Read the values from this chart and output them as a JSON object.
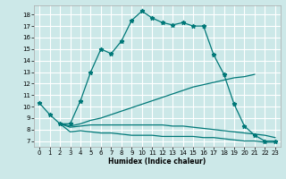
{
  "xlabel": "Humidex (Indice chaleur)",
  "bg_color": "#cce8e8",
  "grid_color": "#ffffff",
  "line_color": "#007878",
  "xlim": [
    -0.5,
    23.5
  ],
  "ylim": [
    6.5,
    18.8
  ],
  "xticks": [
    0,
    1,
    2,
    3,
    4,
    5,
    6,
    7,
    8,
    9,
    10,
    11,
    12,
    13,
    14,
    15,
    16,
    17,
    18,
    19,
    20,
    21,
    22,
    23
  ],
  "yticks": [
    7,
    8,
    9,
    10,
    11,
    12,
    13,
    14,
    15,
    16,
    17,
    18
  ],
  "curve1_x": [
    0,
    1,
    2,
    3,
    4,
    5,
    6,
    7,
    8,
    9,
    10,
    11,
    12,
    13,
    14,
    15,
    16,
    17,
    18,
    19,
    20,
    21,
    22,
    23
  ],
  "curve1_y": [
    10.3,
    9.3,
    8.5,
    8.5,
    10.5,
    13.0,
    15.0,
    14.6,
    15.7,
    17.5,
    18.3,
    17.7,
    17.3,
    17.1,
    17.3,
    17.0,
    17.0,
    14.5,
    12.8,
    10.2,
    8.3,
    7.5,
    7.0,
    7.0
  ],
  "curve2_x": [
    2,
    3,
    4,
    5,
    6,
    7,
    8,
    9,
    10,
    11,
    12,
    13,
    14,
    15,
    16,
    17,
    18,
    19,
    20,
    21
  ],
  "curve2_y": [
    8.5,
    8.3,
    8.5,
    8.8,
    9.0,
    9.3,
    9.6,
    9.9,
    10.2,
    10.5,
    10.8,
    11.1,
    11.4,
    11.7,
    11.9,
    12.1,
    12.3,
    12.5,
    12.6,
    12.8
  ],
  "curve3_x": [
    2,
    3,
    4,
    5,
    6,
    7,
    8,
    9,
    10,
    11,
    12,
    13,
    14,
    15,
    16,
    17,
    18,
    19,
    20,
    21,
    22,
    23
  ],
  "curve3_y": [
    8.5,
    8.2,
    8.3,
    8.4,
    8.4,
    8.4,
    8.4,
    8.4,
    8.4,
    8.4,
    8.4,
    8.3,
    8.3,
    8.2,
    8.1,
    8.0,
    7.9,
    7.8,
    7.7,
    7.6,
    7.5,
    7.3
  ],
  "curve4_x": [
    2,
    3,
    4,
    5,
    6,
    7,
    8,
    9,
    10,
    11,
    12,
    13,
    14,
    15,
    16,
    17,
    18,
    19,
    20,
    21,
    22,
    23
  ],
  "curve4_y": [
    8.5,
    7.8,
    7.9,
    7.8,
    7.7,
    7.7,
    7.6,
    7.5,
    7.5,
    7.5,
    7.4,
    7.4,
    7.4,
    7.4,
    7.3,
    7.3,
    7.2,
    7.1,
    7.0,
    7.0,
    6.9,
    6.9
  ]
}
